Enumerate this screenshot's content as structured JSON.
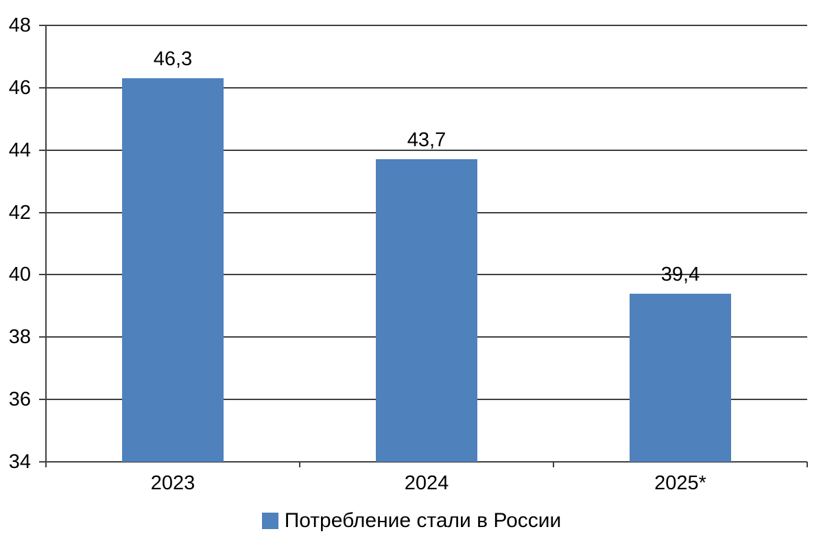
{
  "chart_data": {
    "type": "bar",
    "categories": [
      "2023",
      "2024",
      "2025*"
    ],
    "values": [
      46.3,
      43.7,
      39.4
    ],
    "value_labels": [
      "46,3",
      "43,7",
      "39,4"
    ],
    "series_name": "Потребление стали в России",
    "legend_label": "Потребление стали в России",
    "legend_position": "bottom-center",
    "title": "",
    "xlabel": "",
    "ylabel": "",
    "ylim": [
      34,
      48
    ],
    "ytick_step": 2,
    "ytick_labels": [
      "48",
      "46",
      "44",
      "42",
      "40",
      "38",
      "36",
      "34"
    ],
    "grid": true,
    "bar_color": "#4F81BD",
    "axis_color": "#3f3f3f",
    "text_color": "#000000",
    "background_color": "#ffffff"
  }
}
